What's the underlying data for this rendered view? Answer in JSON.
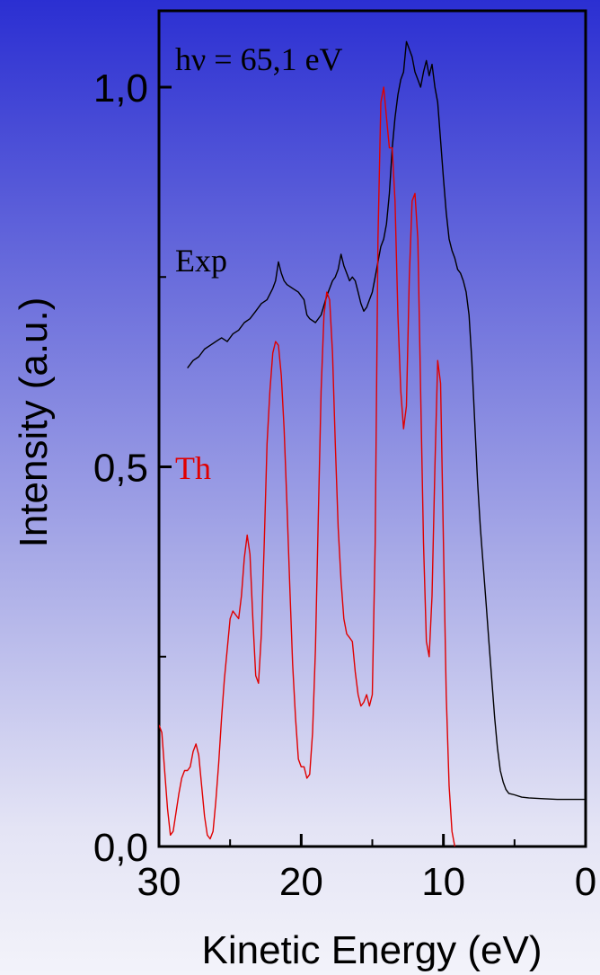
{
  "chart_data": {
    "type": "line",
    "xlabel": "Kinetic Energy (eV)",
    "ylabel": "Intensity (a.u.)",
    "xlim": [
      30,
      0
    ],
    "ylim": [
      0,
      1.07
    ],
    "x_ticks": [
      30,
      20,
      10,
      0
    ],
    "x_tick_labels": [
      "30",
      "20",
      "10",
      "0"
    ],
    "y_ticks": [
      0,
      0.5,
      1.0
    ],
    "y_tick_labels": [
      "0,0",
      "0,5",
      "1,0"
    ],
    "y_minor_ticks": [
      0.25,
      0.75
    ],
    "grid": false,
    "annotations": [
      {
        "text": "hν = 65,1 eV",
        "color": "#000000"
      },
      {
        "text": "Exp",
        "color": "#000000"
      },
      {
        "text": "Th",
        "color": "#e00000"
      }
    ],
    "series": [
      {
        "name": "Exp",
        "color": "#000000",
        "points": [
          [
            28.0,
            0.63
          ],
          [
            27.6,
            0.64
          ],
          [
            27.2,
            0.645
          ],
          [
            26.8,
            0.655
          ],
          [
            26.4,
            0.66
          ],
          [
            26.0,
            0.665
          ],
          [
            25.6,
            0.67
          ],
          [
            25.2,
            0.665
          ],
          [
            24.8,
            0.675
          ],
          [
            24.4,
            0.68
          ],
          [
            24.0,
            0.69
          ],
          [
            23.6,
            0.695
          ],
          [
            23.2,
            0.705
          ],
          [
            22.8,
            0.715
          ],
          [
            22.4,
            0.72
          ],
          [
            22.0,
            0.735
          ],
          [
            21.8,
            0.745
          ],
          [
            21.6,
            0.77
          ],
          [
            21.4,
            0.755
          ],
          [
            21.2,
            0.745
          ],
          [
            21.0,
            0.74
          ],
          [
            20.6,
            0.735
          ],
          [
            20.2,
            0.73
          ],
          [
            19.8,
            0.72
          ],
          [
            19.6,
            0.7
          ],
          [
            19.4,
            0.695
          ],
          [
            19.0,
            0.69
          ],
          [
            18.6,
            0.7
          ],
          [
            18.2,
            0.725
          ],
          [
            17.8,
            0.745
          ],
          [
            17.6,
            0.75
          ],
          [
            17.4,
            0.76
          ],
          [
            17.2,
            0.78
          ],
          [
            17.0,
            0.765
          ],
          [
            16.8,
            0.755
          ],
          [
            16.6,
            0.745
          ],
          [
            16.4,
            0.75
          ],
          [
            16.2,
            0.745
          ],
          [
            16.0,
            0.73
          ],
          [
            15.8,
            0.715
          ],
          [
            15.6,
            0.705
          ],
          [
            15.4,
            0.71
          ],
          [
            15.2,
            0.72
          ],
          [
            15.0,
            0.73
          ],
          [
            14.8,
            0.75
          ],
          [
            14.6,
            0.77
          ],
          [
            14.4,
            0.79
          ],
          [
            14.2,
            0.8
          ],
          [
            14.0,
            0.82
          ],
          [
            13.8,
            0.86
          ],
          [
            13.6,
            0.92
          ],
          [
            13.4,
            0.96
          ],
          [
            13.2,
            0.99
          ],
          [
            13.0,
            1.01
          ],
          [
            12.8,
            1.02
          ],
          [
            12.6,
            1.06
          ],
          [
            12.4,
            1.05
          ],
          [
            12.2,
            1.04
          ],
          [
            12.0,
            1.02
          ],
          [
            11.8,
            1.01
          ],
          [
            11.6,
            1.0
          ],
          [
            11.4,
            1.02
          ],
          [
            11.2,
            1.035
          ],
          [
            11.0,
            1.015
          ],
          [
            10.8,
            1.03
          ],
          [
            10.6,
            1.0
          ],
          [
            10.4,
            0.98
          ],
          [
            10.2,
            0.93
          ],
          [
            10.0,
            0.88
          ],
          [
            9.8,
            0.835
          ],
          [
            9.6,
            0.8
          ],
          [
            9.4,
            0.785
          ],
          [
            9.2,
            0.775
          ],
          [
            9.0,
            0.76
          ],
          [
            8.8,
            0.755
          ],
          [
            8.6,
            0.745
          ],
          [
            8.4,
            0.73
          ],
          [
            8.2,
            0.7
          ],
          [
            8.0,
            0.64
          ],
          [
            7.8,
            0.56
          ],
          [
            7.6,
            0.48
          ],
          [
            7.4,
            0.42
          ],
          [
            7.2,
            0.37
          ],
          [
            7.0,
            0.32
          ],
          [
            6.8,
            0.27
          ],
          [
            6.6,
            0.22
          ],
          [
            6.4,
            0.17
          ],
          [
            6.2,
            0.13
          ],
          [
            6.0,
            0.1
          ],
          [
            5.8,
            0.085
          ],
          [
            5.6,
            0.075
          ],
          [
            5.4,
            0.07
          ],
          [
            5.0,
            0.068
          ],
          [
            4.5,
            0.065
          ],
          [
            4.0,
            0.064
          ],
          [
            3.0,
            0.063
          ],
          [
            2.0,
            0.062
          ],
          [
            1.0,
            0.062
          ],
          [
            0.0,
            0.062
          ]
        ]
      },
      {
        "name": "Th",
        "color": "#e00000",
        "points": [
          [
            30.0,
            0.16
          ],
          [
            29.8,
            0.15
          ],
          [
            29.6,
            0.1
          ],
          [
            29.4,
            0.05
          ],
          [
            29.2,
            0.015
          ],
          [
            29.0,
            0.02
          ],
          [
            28.8,
            0.045
          ],
          [
            28.6,
            0.07
          ],
          [
            28.4,
            0.09
          ],
          [
            28.2,
            0.1
          ],
          [
            28.0,
            0.1
          ],
          [
            27.8,
            0.105
          ],
          [
            27.6,
            0.125
          ],
          [
            27.4,
            0.135
          ],
          [
            27.2,
            0.12
          ],
          [
            27.0,
            0.08
          ],
          [
            26.8,
            0.04
          ],
          [
            26.6,
            0.015
          ],
          [
            26.4,
            0.01
          ],
          [
            26.2,
            0.02
          ],
          [
            26.0,
            0.06
          ],
          [
            25.8,
            0.11
          ],
          [
            25.6,
            0.17
          ],
          [
            25.4,
            0.22
          ],
          [
            25.2,
            0.26
          ],
          [
            25.0,
            0.3
          ],
          [
            24.8,
            0.31
          ],
          [
            24.6,
            0.305
          ],
          [
            24.4,
            0.3
          ],
          [
            24.2,
            0.33
          ],
          [
            24.0,
            0.38
          ],
          [
            23.8,
            0.41
          ],
          [
            23.6,
            0.385
          ],
          [
            23.4,
            0.3
          ],
          [
            23.2,
            0.225
          ],
          [
            23.0,
            0.215
          ],
          [
            22.8,
            0.28
          ],
          [
            22.6,
            0.4
          ],
          [
            22.4,
            0.53
          ],
          [
            22.2,
            0.6
          ],
          [
            22.0,
            0.65
          ],
          [
            21.8,
            0.665
          ],
          [
            21.6,
            0.66
          ],
          [
            21.4,
            0.62
          ],
          [
            21.2,
            0.55
          ],
          [
            21.0,
            0.45
          ],
          [
            20.8,
            0.34
          ],
          [
            20.6,
            0.24
          ],
          [
            20.4,
            0.17
          ],
          [
            20.2,
            0.115
          ],
          [
            20.0,
            0.105
          ],
          [
            19.8,
            0.105
          ],
          [
            19.6,
            0.09
          ],
          [
            19.4,
            0.095
          ],
          [
            19.2,
            0.15
          ],
          [
            19.0,
            0.26
          ],
          [
            18.8,
            0.43
          ],
          [
            18.6,
            0.6
          ],
          [
            18.4,
            0.7
          ],
          [
            18.2,
            0.73
          ],
          [
            18.0,
            0.72
          ],
          [
            17.8,
            0.65
          ],
          [
            17.6,
            0.53
          ],
          [
            17.4,
            0.42
          ],
          [
            17.2,
            0.35
          ],
          [
            17.0,
            0.3
          ],
          [
            16.8,
            0.28
          ],
          [
            16.6,
            0.275
          ],
          [
            16.4,
            0.27
          ],
          [
            16.2,
            0.23
          ],
          [
            16.0,
            0.2
          ],
          [
            15.8,
            0.185
          ],
          [
            15.6,
            0.19
          ],
          [
            15.4,
            0.2
          ],
          [
            15.2,
            0.185
          ],
          [
            15.0,
            0.2
          ],
          [
            14.8,
            0.4
          ],
          [
            14.6,
            0.8
          ],
          [
            14.4,
            0.98
          ],
          [
            14.2,
            1.0
          ],
          [
            14.0,
            0.96
          ],
          [
            13.8,
            0.92
          ],
          [
            13.6,
            0.92
          ],
          [
            13.4,
            0.85
          ],
          [
            13.2,
            0.7
          ],
          [
            13.0,
            0.6
          ],
          [
            12.8,
            0.55
          ],
          [
            12.6,
            0.58
          ],
          [
            12.4,
            0.75
          ],
          [
            12.2,
            0.85
          ],
          [
            12.0,
            0.86
          ],
          [
            11.8,
            0.8
          ],
          [
            11.6,
            0.6
          ],
          [
            11.4,
            0.4
          ],
          [
            11.2,
            0.27
          ],
          [
            11.0,
            0.25
          ],
          [
            10.8,
            0.33
          ],
          [
            10.6,
            0.5
          ],
          [
            10.4,
            0.64
          ],
          [
            10.2,
            0.61
          ],
          [
            10.0,
            0.4
          ],
          [
            9.8,
            0.2
          ],
          [
            9.6,
            0.08
          ],
          [
            9.4,
            0.02
          ],
          [
            9.2,
            0.0
          ]
        ]
      }
    ]
  }
}
